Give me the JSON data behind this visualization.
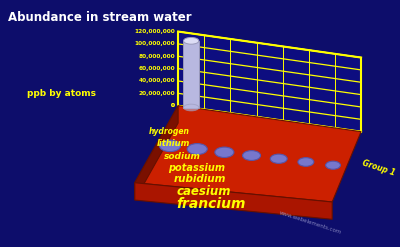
{
  "title": "Abundance in stream water",
  "ylabel": "ppb by atoms",
  "group_label": "Group 1",
  "website": "www.webelements.com",
  "elements": [
    "hydrogen",
    "lithium",
    "sodium",
    "potassium",
    "rubidium",
    "caesium",
    "francium"
  ],
  "values": [
    108000000,
    12,
    6300000,
    2300000,
    17,
    0.03,
    0
  ],
  "background_color": "#0d0d6b",
  "platform_top_color": "#cc2000",
  "platform_side_color": "#7a1000",
  "platform_front_color": "#aa1500",
  "bar_color": "#b8b8e0",
  "bar_top_color": "#ddddf5",
  "grid_color": "#ffff00",
  "text_color": "#ffff00",
  "title_color": "#ffffff",
  "hole_color": "#7777cc",
  "ylim": [
    0,
    120000000
  ],
  "ytick_labels": [
    "0",
    "20,000,000",
    "40,000,000",
    "60,000,000",
    "80,000,000",
    "100,000,000",
    "120,000,000"
  ],
  "element_fontsizes": [
    5.5,
    6.0,
    6.5,
    7.0,
    7.5,
    8.5,
    10.0
  ]
}
